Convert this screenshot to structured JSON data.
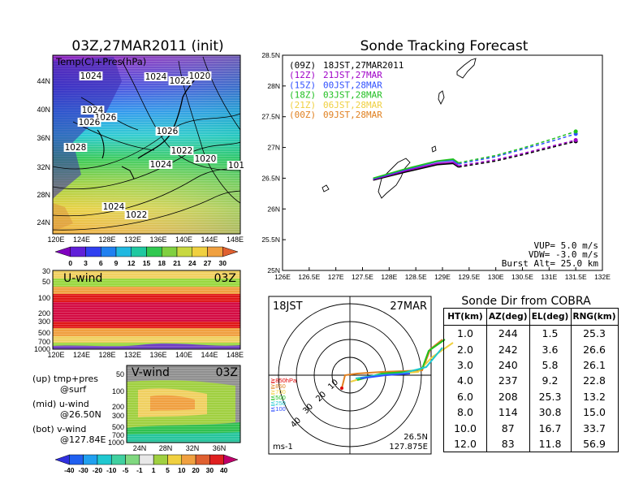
{
  "colors": {
    "purple": "#a000c8",
    "blue": "#3050ff",
    "green": "#20c020",
    "lightgreen": "#98e040",
    "cyan": "#20c8d0",
    "yellow": "#f0d040",
    "orange": "#e08020",
    "red": "#e00000",
    "violet": "#6020a0",
    "pink": "#f060a0"
  },
  "map_panel": {
    "title": "03Z,27MAR2011 (init)",
    "field_label": "Temp(C)+Pres(hPa)",
    "lat_ticks": [
      "44N",
      "40N",
      "36N",
      "32N",
      "28N",
      "24N"
    ],
    "lon_ticks": [
      "120E",
      "124E",
      "128E",
      "132E",
      "136E",
      "140E",
      "144E",
      "148E"
    ],
    "pressure_labels": [
      "1024",
      "1024",
      "1022",
      "1020",
      "1024",
      "1026",
      "1026",
      "1028",
      "1022",
      "1026",
      "1024",
      "1020",
      "101",
      "1024",
      "1022"
    ],
    "colorbar_ticks": [
      "0",
      "3",
      "6",
      "9",
      "12",
      "15",
      "18",
      "21",
      "24",
      "27",
      "30"
    ]
  },
  "uwind_panel": {
    "title": "U-wind",
    "time": "03Z",
    "p_ticks": [
      "30",
      "50",
      "100",
      "200",
      "300",
      "500",
      "700",
      "1000"
    ],
    "lon_ticks": [
      "120E",
      "124E",
      "128E",
      "132E",
      "136E",
      "140E",
      "144E",
      "148E"
    ]
  },
  "vwind_panel": {
    "title": "V-wind",
    "time": "03Z",
    "p_ticks": [
      "50",
      "100",
      "200",
      "300",
      "500",
      "700",
      "1000"
    ],
    "lat_ticks": [
      "24N",
      "28N",
      "32N",
      "36N"
    ],
    "colorbar_ticks": [
      "-40",
      "-30",
      "-20",
      "-10",
      "-5",
      "-1",
      "1",
      "5",
      "10",
      "20",
      "30",
      "40"
    ]
  },
  "panel_notes": [
    {
      "line1": "(up) tmp+pres",
      "line2": "@surf"
    },
    {
      "line1": "(mid) u-wind",
      "line2": "@26.50N"
    },
    {
      "line1": "(bot) v-wind",
      "line2": "@127.84E"
    }
  ],
  "track_panel": {
    "title": "Sonde Tracking Forecast",
    "lat_ticks": [
      "28.5N",
      "28N",
      "27.5N",
      "27N",
      "26.5N",
      "26N",
      "25.5N",
      "25N"
    ],
    "lon_ticks": [
      "126E",
      "126.5E",
      "127E",
      "127.5E",
      "128E",
      "128.5E",
      "129E",
      "129.5E",
      "130E",
      "130.5E",
      "131E",
      "131.5E",
      "132E"
    ],
    "legend": [
      {
        "utc": "(09Z)",
        "jst": "18JST,27MAR2011",
        "color": "#000000"
      },
      {
        "utc": "(12Z)",
        "jst": "21JST,27MAR",
        "color": "#a000c8"
      },
      {
        "utc": "(15Z)",
        "jst": "00JST,28MAR",
        "color": "#3050ff"
      },
      {
        "utc": "(18Z)",
        "jst": "03JST,28MAR",
        "color": "#20c020"
      },
      {
        "utc": "(21Z)",
        "jst": "06JST,28MAR",
        "color": "#f0d040"
      },
      {
        "utc": "(00Z)",
        "jst": "09JST,28MAR",
        "color": "#e08020"
      }
    ],
    "params": [
      "VUP= 5.0 m/s",
      "VDW= -3.0 m/s",
      "Burst Alt= 25.0 km"
    ]
  },
  "chart_data": [
    {
      "type": "line",
      "title": "Sonde Tracking Forecast",
      "xlim": [
        126,
        132
      ],
      "ylim": [
        25,
        28.5
      ],
      "series": [
        {
          "name": "(09Z) 18JST,27MAR2011",
          "color": "#000000",
          "x": [
            127.7,
            128.3,
            128.9,
            129.2,
            129.3,
            130.0,
            130.5,
            131.0,
            131.5
          ],
          "y": [
            26.47,
            26.6,
            26.72,
            26.74,
            26.68,
            26.78,
            26.88,
            26.99,
            27.1
          ]
        },
        {
          "name": "(12Z) 21JST,27MAR",
          "color": "#a000c8",
          "x": [
            127.7,
            128.3,
            128.9,
            129.2,
            129.3,
            130.0,
            130.5,
            131.0,
            131.5
          ],
          "y": [
            26.48,
            26.62,
            26.74,
            26.76,
            26.7,
            26.8,
            26.9,
            27.01,
            27.12
          ]
        },
        {
          "name": "(15Z) 00JST,28MAR",
          "color": "#3050ff",
          "x": [
            127.7,
            128.3,
            128.9,
            129.2,
            129.3,
            130.0,
            130.5,
            131.0,
            131.5
          ],
          "y": [
            26.49,
            26.64,
            26.77,
            26.79,
            26.73,
            26.85,
            26.97,
            27.09,
            27.22
          ]
        },
        {
          "name": "(18Z) 03JST,28MAR",
          "color": "#20c020",
          "x": [
            127.7,
            128.3,
            128.9,
            129.2,
            129.3,
            130.0,
            130.5,
            131.0,
            131.5
          ],
          "y": [
            26.5,
            26.65,
            26.78,
            26.81,
            26.75,
            26.87,
            26.99,
            27.12,
            27.26
          ]
        },
        {
          "name": "(21Z) 06JST,28MAR",
          "color": "#f0d040",
          "x": [],
          "y": []
        },
        {
          "name": "(00Z) 09JST,28MAR",
          "color": "#e08020",
          "x": [],
          "y": []
        }
      ]
    },
    {
      "type": "table",
      "title": "Sonde Dir from COBRA",
      "columns": [
        "HT(km)",
        "AZ(deg)",
        "EL(deg)",
        "RNG(km)"
      ],
      "rows": [
        [
          "1.0",
          "244",
          "1.5",
          "25.3"
        ],
        [
          "2.0",
          "242",
          "3.6",
          "26.6"
        ],
        [
          "3.0",
          "240",
          "5.8",
          "26.1"
        ],
        [
          "4.0",
          "237",
          "9.2",
          "22.8"
        ],
        [
          "6.0",
          "208",
          "25.3",
          "13.2"
        ],
        [
          "8.0",
          "114",
          "30.8",
          "15.0"
        ],
        [
          "10.0",
          "87",
          "16.7",
          "33.7"
        ],
        [
          "12.0",
          "83",
          "11.8",
          "56.9"
        ]
      ]
    }
  ],
  "hodo_panel": {
    "left_title": "18JST",
    "right_title": "27MAR",
    "ring_labels": [
      "10",
      "20",
      "30",
      "40"
    ],
    "unit": "ms-1",
    "location_lat": "26.5N",
    "location_lon": "127.875E",
    "level_legend": [
      {
        "label": "≧850hPa",
        "color": "#e00000"
      },
      {
        "label": "≧850",
        "color": "#e08020"
      },
      {
        "label": "≧700",
        "color": "#f0d040"
      },
      {
        "label": "≦500",
        "color": "#20c020"
      },
      {
        "label": "≦250",
        "color": "#20c8d0"
      },
      {
        "label": "≦100",
        "color": "#3050ff"
      }
    ]
  }
}
